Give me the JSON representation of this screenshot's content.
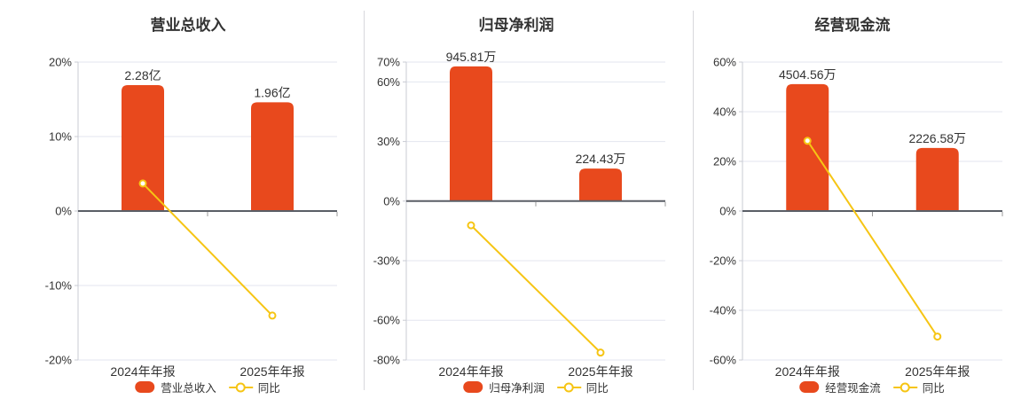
{
  "colors": {
    "bar": "#E8491D",
    "line": "#F6C514",
    "grid_line": "#E3E6EF",
    "zero_line": "#5A5E66",
    "axis_line": "#C9CBD3",
    "tick": "#999999",
    "text": "#333333",
    "divider": "#D8D8DC",
    "background": "#ffffff"
  },
  "chart_data": [
    {
      "type": "bar",
      "title": "营业总收入",
      "categories": [
        "2024年年报",
        "2025年年报"
      ],
      "bar_series": {
        "name": "营业总收入",
        "value_labels": [
          "2.28亿",
          "1.96亿"
        ],
        "display_pct": [
          16.9,
          14.6
        ]
      },
      "line_series": {
        "name": "同比",
        "values_pct": [
          3.7,
          -14.04
        ]
      },
      "y_axis": {
        "max": 20,
        "min": -20,
        "ticks": [
          20,
          10,
          0,
          -10,
          -20
        ],
        "unit": "%"
      },
      "legend": [
        "营业总收入",
        "同比"
      ],
      "grid": true,
      "legend_position": "bottom"
    },
    {
      "type": "bar",
      "title": "归母净利润",
      "categories": [
        "2024年年报",
        "2025年年报"
      ],
      "bar_series": {
        "name": "归母净利润",
        "value_labels": [
          "945.81万",
          "224.43万"
        ],
        "display_pct": [
          67.8,
          16.4
        ]
      },
      "line_series": {
        "name": "同比",
        "values_pct": [
          -12.2,
          -76.27
        ]
      },
      "y_axis": {
        "max": 70,
        "min": -80,
        "ticks": [
          70,
          60,
          30,
          0,
          -30,
          -60,
          -80
        ],
        "unit": "%"
      },
      "legend": [
        "归母净利润",
        "同比"
      ],
      "grid": true,
      "legend_position": "bottom"
    },
    {
      "type": "bar",
      "title": "经营现金流",
      "categories": [
        "2024年年报",
        "2025年年报"
      ],
      "bar_series": {
        "name": "经营现金流",
        "value_labels": [
          "4504.56万",
          "2226.58万"
        ],
        "display_pct": [
          51.1,
          25.4
        ]
      },
      "line_series": {
        "name": "同比",
        "values_pct": [
          28.3,
          -50.57
        ]
      },
      "y_axis": {
        "max": 60,
        "min": -60,
        "ticks": [
          60,
          40,
          20,
          0,
          -20,
          -40,
          -60
        ],
        "unit": "%"
      },
      "legend": [
        "经营现金流",
        "同比"
      ],
      "grid": true,
      "legend_position": "bottom"
    }
  ]
}
